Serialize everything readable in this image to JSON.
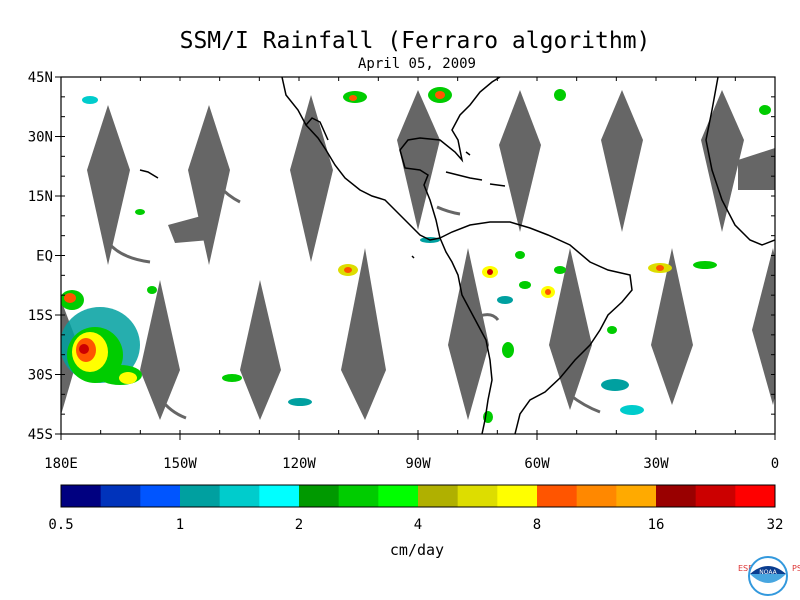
{
  "title": "SSM/I Rainfall (Ferraro algorithm)",
  "subtitle": "April 05, 2009",
  "unit_label": "cm/day",
  "map": {
    "lon_range": [
      -180,
      0
    ],
    "lat_range": [
      -45,
      45
    ],
    "lon_ticks": [
      {
        "value": -180,
        "label": "180E"
      },
      {
        "value": -150,
        "label": "150W"
      },
      {
        "value": -120,
        "label": "120W"
      },
      {
        "value": -90,
        "label": "90W"
      },
      {
        "value": -60,
        "label": "60W"
      },
      {
        "value": -30,
        "label": "30W"
      },
      {
        "value": 0,
        "label": "0"
      }
    ],
    "lat_ticks": [
      {
        "value": 45,
        "label": "45N"
      },
      {
        "value": 30,
        "label": "30N"
      },
      {
        "value": 15,
        "label": "15N"
      },
      {
        "value": 0,
        "label": "EQ"
      },
      {
        "value": -15,
        "label": "15S"
      },
      {
        "value": -30,
        "label": "30S"
      },
      {
        "value": -45,
        "label": "45S"
      }
    ],
    "swath_gap_color": "#666666",
    "coast_color": "#000000"
  },
  "colorbar": {
    "colors": [
      "#000080",
      "#0033bb",
      "#0055ff",
      "#00a0a0",
      "#00cccc",
      "#00ffff",
      "#009900",
      "#00cc00",
      "#00ff00",
      "#b0b000",
      "#dddd00",
      "#ffff00",
      "#ff5500",
      "#ff8800",
      "#ffaa00",
      "#990000",
      "#cc0000",
      "#ff0000"
    ],
    "tick_labels": [
      "0.5",
      "1",
      "2",
      "4",
      "8",
      "16",
      "32"
    ]
  },
  "logo": {
    "left_letters": "ESRL",
    "right_letters": "PSD",
    "center_text": "NOAA"
  }
}
